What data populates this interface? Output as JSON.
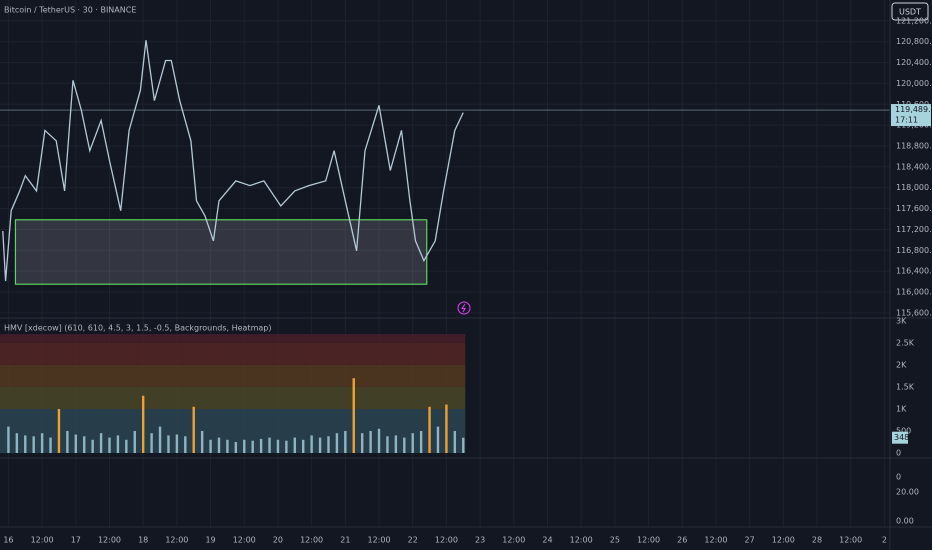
{
  "header": {
    "currency": "USDT"
  },
  "chart_data": [
    {
      "type": "line",
      "title": "Bitcoin / TetherUS · 30 · BINANCE",
      "color": "#b4c9d6",
      "x": [
        -2,
        -1,
        1,
        4,
        6,
        10,
        13,
        17,
        20,
        23,
        26,
        29,
        33,
        36,
        40,
        43,
        47,
        49,
        52,
        56,
        58,
        61,
        65,
        67,
        70,
        73,
        75,
        81,
        86,
        91,
        97,
        102,
        107,
        113,
        116,
        120,
        124,
        127,
        132,
        136,
        140,
        143,
        145,
        148,
        152,
        155,
        159,
        162
      ],
      "values": [
        117170,
        116210,
        117560,
        117940,
        118230,
        117940,
        119100,
        118900,
        117940,
        120060,
        119480,
        118710,
        119290,
        118520,
        117560,
        119100,
        119870,
        120830,
        119670,
        120440,
        120440,
        119670,
        118900,
        117750,
        117460,
        116980,
        117750,
        118130,
        118040,
        118130,
        117650,
        117940,
        118040,
        118130,
        118710,
        117750,
        116790,
        118710,
        119580,
        118330,
        119100,
        117750,
        116980,
        116600,
        116980,
        117940,
        119100,
        119440
      ],
      "xlim": [
        -3,
        314
      ],
      "xticks": [
        {
          "value": 0,
          "label": "16"
        },
        {
          "value": 12,
          "label": "12:00"
        },
        {
          "value": 24,
          "label": "17"
        },
        {
          "value": 36,
          "label": "12:00"
        },
        {
          "value": 48,
          "label": "18"
        },
        {
          "value": 60,
          "label": "12:00"
        },
        {
          "value": 72,
          "label": "19"
        },
        {
          "value": 84,
          "label": "12:00"
        },
        {
          "value": 96,
          "label": "20"
        },
        {
          "value": 108,
          "label": "12:00"
        },
        {
          "value": 120,
          "label": "21"
        },
        {
          "value": 132,
          "label": "12:00"
        },
        {
          "value": 144,
          "label": "22"
        },
        {
          "value": 156,
          "label": "12:00"
        },
        {
          "value": 168,
          "label": "23"
        },
        {
          "value": 180,
          "label": "12:00"
        },
        {
          "value": 192,
          "label": "24"
        },
        {
          "value": 204,
          "label": "12:00"
        },
        {
          "value": 216,
          "label": "25"
        },
        {
          "value": 228,
          "label": "12:00"
        },
        {
          "value": 240,
          "label": "26"
        },
        {
          "value": 252,
          "label": "12:00"
        },
        {
          "value": 264,
          "label": "27"
        },
        {
          "value": 276,
          "label": "12:00"
        },
        {
          "value": 288,
          "label": "28"
        },
        {
          "value": 300,
          "label": "12:00"
        },
        {
          "value": 312,
          "label": "2"
        }
      ],
      "ylim": [
        115540,
        121600
      ],
      "yticks": [
        {
          "value": 115600,
          "label": "115,600.00"
        },
        {
          "value": 116000,
          "label": "116,000.00"
        },
        {
          "value": 116400,
          "label": "116,400.00"
        },
        {
          "value": 116800,
          "label": "116,800.00"
        },
        {
          "value": 117200,
          "label": "117,200.00"
        },
        {
          "value": 117600,
          "label": "117,600.00"
        },
        {
          "value": 118000,
          "label": "118,000.00"
        },
        {
          "value": 118400,
          "label": "118,400.00"
        },
        {
          "value": 118800,
          "label": "118,800.00"
        },
        {
          "value": 119200,
          "label": "119,200.00"
        },
        {
          "value": 119600,
          "label": "119,600.00"
        },
        {
          "value": 120000,
          "label": "120,000.00"
        },
        {
          "value": 120400,
          "label": "120,400.00"
        },
        {
          "value": 120800,
          "label": "120,800.00"
        },
        {
          "value": 121200,
          "label": "121,200.00"
        }
      ],
      "grid": true,
      "zone": {
        "x": [
          2.5,
          149
        ],
        "y": [
          117385,
          116150
        ],
        "color": "#5fd35f"
      },
      "last_price": {
        "value": 119489.75,
        "label": "119,489.75",
        "countdown": "17:11",
        "color": "#a7d4dc"
      }
    },
    {
      "type": "bar",
      "title": "HMV [xdecow] (610, 610, 4.5, 3, 1.5, -0.5, Backgrounds, Heatmap)",
      "x": [
        0,
        3,
        6,
        9,
        12,
        15,
        18,
        21,
        24,
        27,
        30,
        33,
        36,
        39,
        42,
        45,
        48,
        51,
        54,
        57,
        60,
        63,
        66,
        69,
        72,
        75,
        78,
        81,
        84,
        87,
        90,
        93,
        96,
        99,
        102,
        105,
        108,
        111,
        114,
        117,
        120,
        123,
        126,
        129,
        132,
        135,
        138,
        141,
        144,
        147,
        150,
        153,
        156,
        159,
        162
      ],
      "values": [
        600,
        450,
        400,
        380,
        450,
        350,
        1000,
        500,
        420,
        380,
        300,
        450,
        350,
        400,
        300,
        500,
        1300,
        450,
        600,
        400,
        420,
        380,
        1050,
        500,
        300,
        350,
        300,
        250,
        300,
        280,
        320,
        350,
        300,
        280,
        350,
        300,
        400,
        350,
        380,
        450,
        500,
        1700,
        450,
        500,
        550,
        380,
        400,
        350,
        450,
        500,
        1050,
        600,
        1100,
        500,
        348
      ],
      "colors": [
        "#8fb4c4",
        "#8fb4c4",
        "#8fb4c4",
        "#8fb4c4",
        "#8fb4c4",
        "#8fb4c4",
        "#f0a030",
        "#8fb4c4",
        "#8fb4c4",
        "#8fb4c4",
        "#8fb4c4",
        "#8fb4c4",
        "#8fb4c4",
        "#8fb4c4",
        "#8fb4c4",
        "#8fb4c4",
        "#f0a030",
        "#8fb4c4",
        "#8fb4c4",
        "#8fb4c4",
        "#8fb4c4",
        "#8fb4c4",
        "#f0a030",
        "#8fb4c4",
        "#8fb4c4",
        "#8fb4c4",
        "#8fb4c4",
        "#8fb4c4",
        "#8fb4c4",
        "#8fb4c4",
        "#8fb4c4",
        "#8fb4c4",
        "#8fb4c4",
        "#8fb4c4",
        "#8fb4c4",
        "#8fb4c4",
        "#8fb4c4",
        "#8fb4c4",
        "#8fb4c4",
        "#8fb4c4",
        "#8fb4c4",
        "#f0a030",
        "#8fb4c4",
        "#8fb4c4",
        "#8fb4c4",
        "#8fb4c4",
        "#8fb4c4",
        "#8fb4c4",
        "#8fb4c4",
        "#8fb4c4",
        "#f0a030",
        "#8fb4c4",
        "#f0a030",
        "#8fb4c4",
        "#8fb4c4"
      ],
      "ylim": [
        -45,
        3020
      ],
      "yticks": [
        0,
        500,
        {
          "value": 1000,
          "label": "1K"
        },
        {
          "value": 1500,
          "label": "1.5K"
        },
        {
          "value": 2000,
          "label": "2K"
        },
        {
          "value": 2500,
          "label": "2.5K"
        },
        {
          "value": 3000,
          "label": "3K"
        }
      ],
      "bands": [
        {
          "from": 0,
          "to": 1000,
          "color": "#2c4450"
        },
        {
          "from": 1000,
          "to": 1500,
          "color": "#4a4626"
        },
        {
          "from": 1500,
          "to": 2000,
          "color": "#553a20"
        },
        {
          "from": 2000,
          "to": 2500,
          "color": "#552626"
        },
        {
          "from": 2500,
          "to": 2700,
          "color": "#4a1e28"
        }
      ]
    }
  ],
  "pane3": {
    "labels": [
      "0",
      "20.00",
      "0.00"
    ]
  }
}
